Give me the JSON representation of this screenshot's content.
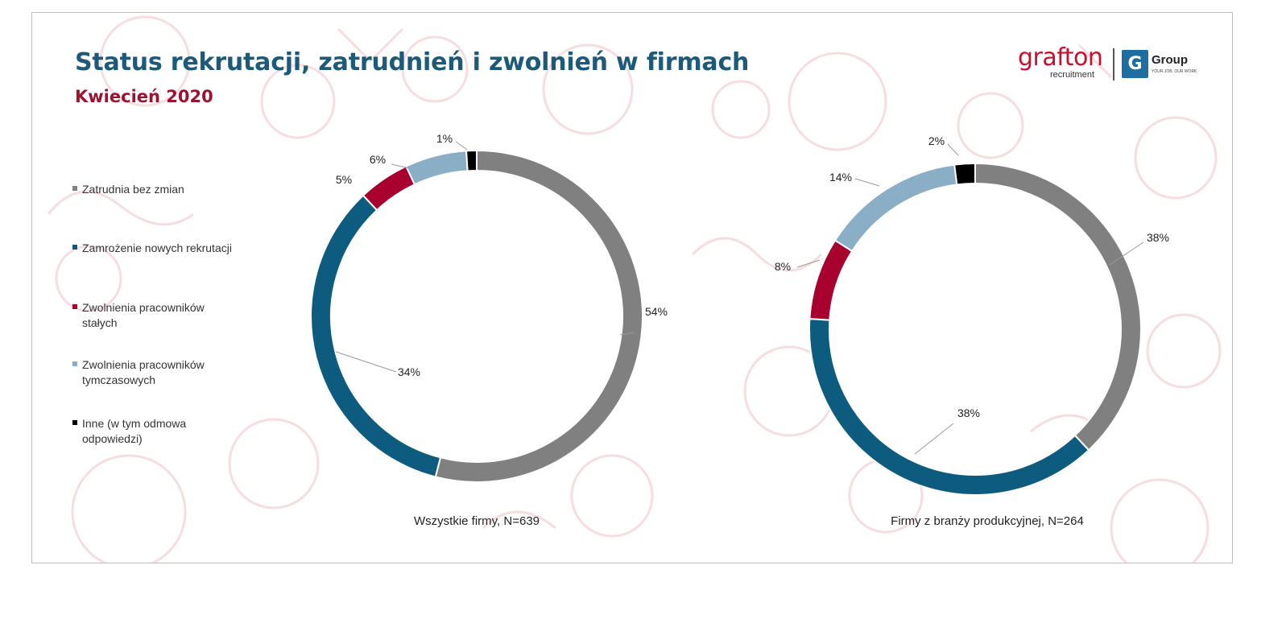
{
  "header": {
    "title": "Status rekrutacji, zatrudnień i zwolnień w firmach",
    "subtitle": "Kwiecień 2020"
  },
  "logo": {
    "word": "grafton",
    "sub": "recruitment",
    "mark": "G",
    "group": "Group",
    "tagline": "YOUR JOB, OUR WORK"
  },
  "colors": {
    "title": "#1d5a7a",
    "subtitle": "#9b1232",
    "brand_red": "#c8102e"
  },
  "legend": {
    "items": [
      {
        "label": "Zatrudnia bez zmian",
        "color": "#808080"
      },
      {
        "label": "Zamrożenie nowych rekrutacji",
        "color": "#0d5c80"
      },
      {
        "label": "Zwolnienia pracowników stałych",
        "color": "#a8002f"
      },
      {
        "label": "Zwolnienia pracowników tymczasowych",
        "color": "#8aaec6"
      },
      {
        "label": "Inne (w tym odmowa odpowiedzi)",
        "color": "#000000"
      }
    ]
  },
  "chart_data": [
    {
      "type": "pie",
      "variant": "donut",
      "title": "Wszystkie firmy, N=639",
      "categories": [
        "Zatrudnia bez zmian",
        "Zamrożenie nowych rekrutacji",
        "Zwolnienia pracowników stałych",
        "Zwolnienia pracowników tymczasowych",
        "Inne (w tym odmowa odpowiedzi)"
      ],
      "values": [
        54,
        34,
        5,
        6,
        1
      ],
      "labels": [
        "54%",
        "34%",
        "5%",
        "6%",
        "1%"
      ],
      "colors": [
        "#808080",
        "#0d5c80",
        "#a8002f",
        "#8aaec6",
        "#000000"
      ]
    },
    {
      "type": "pie",
      "variant": "donut",
      "title": "Firmy z branży produkcyjnej, N=264",
      "categories": [
        "Zatrudnia bez zmian",
        "Zamrożenie nowych rekrutacji",
        "Zwolnienia pracowników stałych",
        "Zwolnienia pracowników tymczasowych",
        "Inne (w tym odmowa odpowiedzi)"
      ],
      "values": [
        38,
        38,
        8,
        14,
        2
      ],
      "labels": [
        "38%",
        "38%",
        "8%",
        "14%",
        "2%"
      ],
      "colors": [
        "#808080",
        "#0d5c80",
        "#a8002f",
        "#8aaec6",
        "#000000"
      ]
    }
  ]
}
